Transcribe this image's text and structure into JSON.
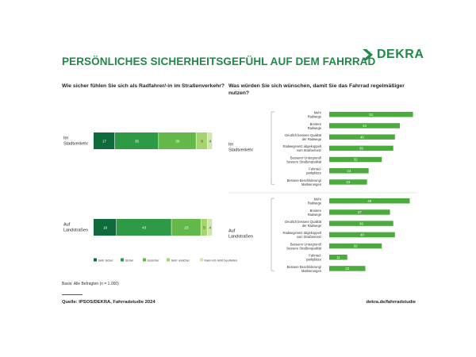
{
  "header": {
    "title": "PERSÖNLICHES SICHERHEITSGEFÜHL AUF DEM FAHRRAD",
    "logo_text": "DEKRA"
  },
  "questions": {
    "left": "Wie sicher fühlen Sie sich als Radfahrer/-in im Straßenverkehr?",
    "right": "Was würden Sie sich wünschen, damit Sie das Fahrrad regelmäßiger nutzen?"
  },
  "footer": {
    "basis": "Basis: Alle Befragten (n = 1.000)",
    "source": "Quelle: IPSOS/DEKRA, Fahrradstudie 2024",
    "link": "dekra.de/fahrradstudie"
  },
  "colors": {
    "brand": "#1f8a46",
    "seg": [
      "#0f6b3c",
      "#2f9a45",
      "#63b84a",
      "#a6d36d",
      "#cfe6b0"
    ],
    "hbar": "#4bab3d"
  },
  "chart_data": [
    {
      "type": "bar",
      "stacked": true,
      "orientation": "horizontal",
      "title": "Wie sicher fühlen Sie sich als Radfahrer/-in im Straßenverkehr?",
      "categories": [
        {
          "label_lines": [
            "Im",
            "Stadtverkehr"
          ]
        },
        {
          "label_lines": [
            "Auf",
            "Landstraßen"
          ]
        }
      ],
      "series": [
        {
          "name": "Sehr sicher",
          "values": [
            17,
            18
          ]
        },
        {
          "name": "Sicher",
          "values": [
            35,
            43
          ]
        },
        {
          "name": "Unsicher",
          "values": [
            30,
            23
          ]
        },
        {
          "name": "Sehr unsicher",
          "values": [
            9,
            5
          ]
        },
        {
          "name": "Kann ich nicht beurteilen",
          "values": [
            4,
            4
          ]
        }
      ],
      "segment_labels": [
        [
          "17",
          "35",
          "30",
          "9",
          "4"
        ],
        [
          "18",
          "43",
          "23",
          "5",
          "4"
        ]
      ],
      "legend_position": "bottom"
    },
    {
      "type": "bar",
      "orientation": "horizontal",
      "title": "Was würden Sie sich wünschen, damit Sie das Fahrrad regelmäßiger nutzen?",
      "groups": [
        {
          "label_lines": [
            "Im",
            "Stadtverkehr"
          ],
          "items": [
            {
              "label_lines": [
                "Mehr",
                "Radwege"
              ],
              "value": 51
            },
            {
              "label_lines": [
                "Breitere",
                "Radwege"
              ],
              "value": 43
            },
            {
              "label_lines": [
                "Deutlich bessere Qualität",
                "der Radwege"
              ],
              "value": 40
            },
            {
              "label_lines": [
                "Radwegenetz abgekoppelt",
                "vom Straßennetz"
              ],
              "value": 39
            },
            {
              "label_lines": [
                "Besserer Untergrund/",
                "bessere Straßenqualität"
              ],
              "value": 32
            },
            {
              "label_lines": [
                "Fahrrad-",
                "parkplätze"
              ],
              "value": 24
            },
            {
              "label_lines": [
                "Bessere Beschilderung/",
                "Markierungen"
              ],
              "value": 23
            }
          ]
        },
        {
          "label_lines": [
            "Auf",
            "Landstraßen"
          ],
          "items": [
            {
              "label_lines": [
                "Mehr",
                "Radwege"
              ],
              "value": 49
            },
            {
              "label_lines": [
                "Breitere",
                "Radwege"
              ],
              "value": 37
            },
            {
              "label_lines": [
                "Deutlich bessere Qualität",
                "der Radwege"
              ],
              "value": 39
            },
            {
              "label_lines": [
                "Radwegenetz abgekoppelt",
                "vom Straßennetz"
              ],
              "value": 40
            },
            {
              "label_lines": [
                "Besserer Untergrund/",
                "bessere Straßenqualität"
              ],
              "value": 32
            },
            {
              "label_lines": [
                "Fahrrad-",
                "parkplätze"
              ],
              "value": 11
            },
            {
              "label_lines": [
                "Bessere Beschilderung/",
                "Markierungen"
              ],
              "value": 22
            }
          ]
        }
      ]
    }
  ]
}
